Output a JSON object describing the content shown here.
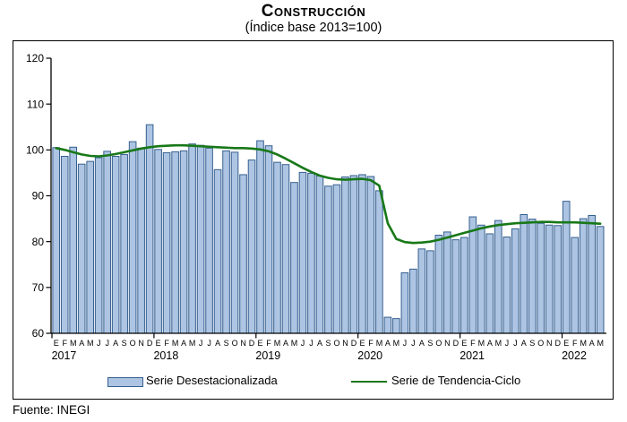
{
  "page": {
    "title": "Construcción",
    "subtitle": "(Índice base 2013=100)",
    "source": "Fuente: INEGI"
  },
  "chart_data": {
    "type": "bar",
    "title": "Construcción",
    "subtitle": "(Índice base 2013=100)",
    "ylim": [
      60,
      120
    ],
    "yticks": [
      60,
      70,
      80,
      90,
      100,
      110,
      120
    ],
    "grid": "off",
    "legend_position": "bottom",
    "x_unit": "month",
    "years": [
      "2017",
      "2018",
      "2019",
      "2020",
      "2021",
      "2022"
    ],
    "months_per_year": [
      12,
      12,
      12,
      12,
      12,
      5
    ],
    "month_letters": [
      "E",
      "F",
      "M",
      "A",
      "M",
      "J",
      "J",
      "A",
      "S",
      "O",
      "N",
      "D"
    ],
    "series": [
      {
        "name": "Serie Desestacionalizada",
        "type": "bar",
        "fill": "#adc5e3",
        "stroke": "#365f8f",
        "values": [
          100.5,
          98.6,
          100.6,
          96.9,
          97.5,
          98.3,
          99.7,
          98.6,
          99.0,
          101.8,
          100.4,
          105.5,
          100.1,
          99.4,
          99.6,
          99.8,
          101.3,
          101.0,
          100.4,
          95.7,
          99.8,
          99.5,
          94.6,
          97.8,
          102.0,
          100.9,
          97.3,
          96.8,
          92.9,
          95.1,
          94.9,
          94.3,
          92.1,
          92.4,
          94.1,
          94.4,
          94.6,
          94.2,
          91.1,
          63.5,
          63.2,
          73.2,
          74.0,
          78.4,
          78.0,
          81.4,
          82.1,
          80.4,
          80.9,
          85.4,
          83.6,
          81.7,
          84.6,
          81.0,
          82.8,
          85.9,
          84.9,
          84.0,
          83.6,
          83.5,
          88.8,
          80.9,
          85.0,
          85.7,
          83.3
        ]
      },
      {
        "name": "Serie de Tendencia-Ciclo",
        "type": "line",
        "color": "#187818",
        "values": [
          100.4,
          100.0,
          99.5,
          99.0,
          98.7,
          98.6,
          98.8,
          99.1,
          99.5,
          99.9,
          100.3,
          100.6,
          100.8,
          100.9,
          101.0,
          101.0,
          100.9,
          100.8,
          100.7,
          100.6,
          100.5,
          100.4,
          100.4,
          100.3,
          100.1,
          99.7,
          99.0,
          98.1,
          97.1,
          96.1,
          95.2,
          94.4,
          93.9,
          93.6,
          93.5,
          93.6,
          93.7,
          93.4,
          92.2,
          84.0,
          80.6,
          79.9,
          79.7,
          79.8,
          80.0,
          80.4,
          80.9,
          81.4,
          81.9,
          82.4,
          82.9,
          83.3,
          83.6,
          83.8,
          84.0,
          84.1,
          84.2,
          84.3,
          84.3,
          84.2,
          84.2,
          84.2,
          84.1,
          84.0,
          83.9
        ]
      }
    ],
    "source": "Fuente: INEGI"
  }
}
